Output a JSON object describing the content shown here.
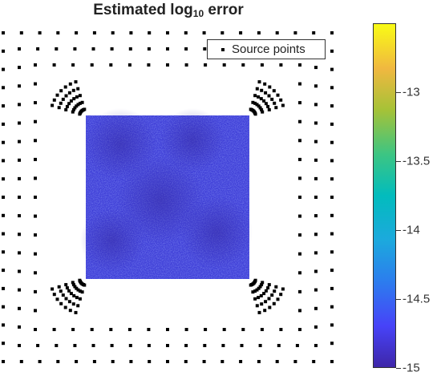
{
  "chart_data": {
    "type": "heatmap",
    "title_main": "Estimated  log",
    "title_sub": "10",
    "title_tail": "  error",
    "legend": {
      "entries": [
        "Source points"
      ],
      "placement": "top-right"
    },
    "colorbar": {
      "colormap": "parula",
      "range": [
        -15,
        -12.5
      ],
      "ticks": [
        -13,
        -13.5,
        -14,
        -14.5,
        -15
      ],
      "tick_labels": [
        "-13",
        "-13.5",
        "-14",
        "-14.5",
        "-15"
      ]
    },
    "field": {
      "description_value": -14.8,
      "region": "square",
      "grid": false
    }
  },
  "colors": {
    "field_dark": "#3a2fc4",
    "field_light": "#4a55f0",
    "points": "#000000"
  }
}
